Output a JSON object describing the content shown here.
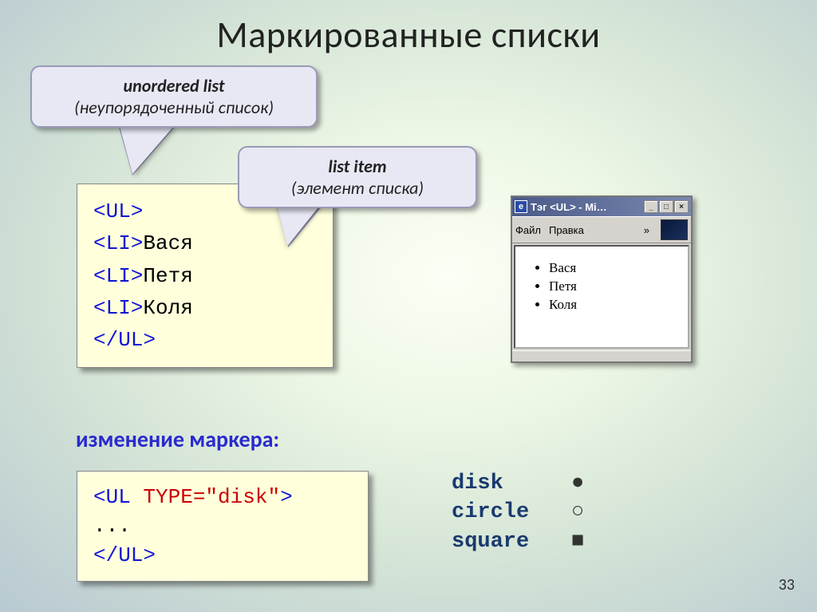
{
  "title": "Маркированные списки",
  "callout1": {
    "line1": "unordered list",
    "line2": "(неупорядоченный список)"
  },
  "callout2": {
    "line1": "list item",
    "line2": "(элемент списка)"
  },
  "code1": {
    "lines": [
      {
        "parts": [
          {
            "cls": "tag-blue",
            "t": "<UL>"
          }
        ]
      },
      {
        "parts": [
          {
            "cls": "tag-blue",
            "t": " <LI>"
          },
          {
            "cls": "tag-black",
            "t": "Вася"
          }
        ]
      },
      {
        "parts": [
          {
            "cls": "tag-blue",
            "t": " <LI>"
          },
          {
            "cls": "tag-black",
            "t": "Петя"
          }
        ]
      },
      {
        "parts": [
          {
            "cls": "tag-blue",
            "t": " <LI>"
          },
          {
            "cls": "tag-black",
            "t": "Коля"
          }
        ]
      },
      {
        "parts": [
          {
            "cls": "tag-blue",
            "t": "</UL>"
          }
        ]
      }
    ]
  },
  "subhead": "изменение маркера:",
  "code2": {
    "lines": [
      {
        "parts": [
          {
            "cls": "tag-blue",
            "t": "<UL "
          },
          {
            "cls": "tag-red",
            "t": "TYPE=\"disk\""
          },
          {
            "cls": "tag-blue",
            "t": ">"
          }
        ]
      },
      {
        "parts": [
          {
            "cls": "tag-black",
            "t": "..."
          }
        ]
      },
      {
        "parts": [
          {
            "cls": "tag-blue",
            "t": "</UL>"
          }
        ]
      }
    ]
  },
  "legend": [
    {
      "label": "disk",
      "sym": "●"
    },
    {
      "label": "circle",
      "sym": "○"
    },
    {
      "label": "square",
      "sym": "■"
    }
  ],
  "browser": {
    "titleicon": "e",
    "title": "Тэг <UL> - Mi…",
    "menu": {
      "file": "Файл",
      "edit": "Правка",
      "more": "»"
    },
    "items": [
      "Вася",
      "Петя",
      "Коля"
    ]
  },
  "pagenum": "33",
  "colors": {
    "callout_bg": "#e8e8f5",
    "callout_border": "#9a9ab8",
    "codebox_bg": "#ffffdc",
    "tag_blue": "#1015d6",
    "tag_red": "#cc0000",
    "subhead_color": "#2a2ad0",
    "legend_label_color": "#1a3a6e"
  }
}
